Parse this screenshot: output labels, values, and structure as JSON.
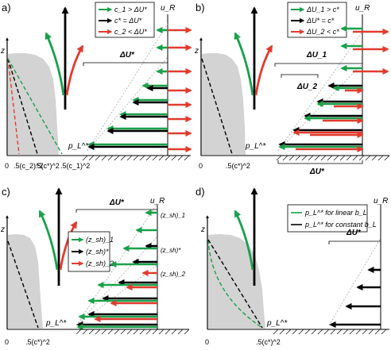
{
  "colors": {
    "green": "#1aa04a",
    "black": "#000000",
    "red": "#e23b2e",
    "shade": "#d3d3d3",
    "guide": "#aaaaaa"
  },
  "panels": {
    "a": {
      "label": "a)",
      "z_label": "z",
      "u_label": "u_R",
      "p_label": "p_L^*",
      "delta_label": "ΔU*",
      "legend": [
        "c_1 > ΔU*",
        "c* = ΔU*",
        "c_2 < ΔU*"
      ],
      "ticks": [
        "0",
        ".5(c_2)^2",
        ".5(c*)^2",
        ".5(c_1)^2"
      ]
    },
    "b": {
      "label": "b)",
      "z_label": "z",
      "u_label": "u_R",
      "p_label": "p_L^*",
      "delta1_label": "ΔU_1",
      "delta2_label": "ΔU_2",
      "bottom_label": "ΔU*",
      "legend": [
        "ΔU_1 > c*",
        "ΔU* = c*",
        "ΔU_2 < c*"
      ],
      "ticks": [
        "0",
        ".5(c*)^2"
      ]
    },
    "c": {
      "label": "c)",
      "z_label": "z",
      "u_label": "u_R",
      "p_label": "p_L^*",
      "delta_label": "ΔU*",
      "legend": [
        "(z_sh)_1",
        "(z_sh)*",
        "(z_sh)_2"
      ],
      "annotations": [
        "(z_sh)_1",
        "(z_sh)*",
        "(z_sh)_2"
      ],
      "ticks": [
        "0",
        ".5(c*)^2"
      ]
    },
    "d": {
      "label": "d)",
      "z_label": "z",
      "u_label": "u_R",
      "p_label": "p_L^*",
      "delta_label": "ΔU*",
      "legend": [
        "p_L^* for linear b_L",
        "p_L^* for constant b_L"
      ],
      "ticks": [
        "0",
        ".5(c*)^2"
      ]
    }
  }
}
